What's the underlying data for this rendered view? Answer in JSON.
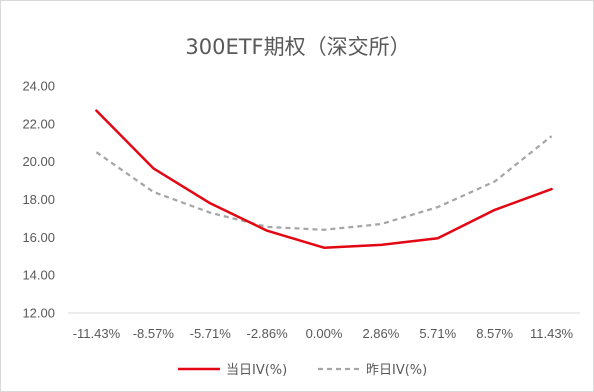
{
  "chart_data": {
    "type": "line",
    "title": "300ETF期权（深交所）",
    "categories": [
      "-11.43%",
      "-8.57%",
      "-5.71%",
      "-2.86%",
      "0.00%",
      "2.86%",
      "5.71%",
      "8.57%",
      "11.43%"
    ],
    "series": [
      {
        "name": "当日IV(%)",
        "color": "#e30613",
        "style": "solid",
        "values": [
          22.7,
          19.65,
          17.8,
          16.35,
          15.45,
          15.6,
          15.95,
          17.45,
          18.55
        ]
      },
      {
        "name": "昨日IV(%)",
        "color": "#a6a6a6",
        "style": "dashed",
        "values": [
          20.5,
          18.4,
          17.3,
          16.55,
          16.4,
          16.7,
          17.6,
          18.95,
          21.35
        ]
      }
    ],
    "ylim": [
      12,
      24
    ],
    "yticks": [
      "12.00",
      "14.00",
      "16.00",
      "18.00",
      "20.00",
      "22.00",
      "24.00"
    ],
    "xlabel": "",
    "ylabel": "",
    "grid": false,
    "legend": "bottom"
  }
}
